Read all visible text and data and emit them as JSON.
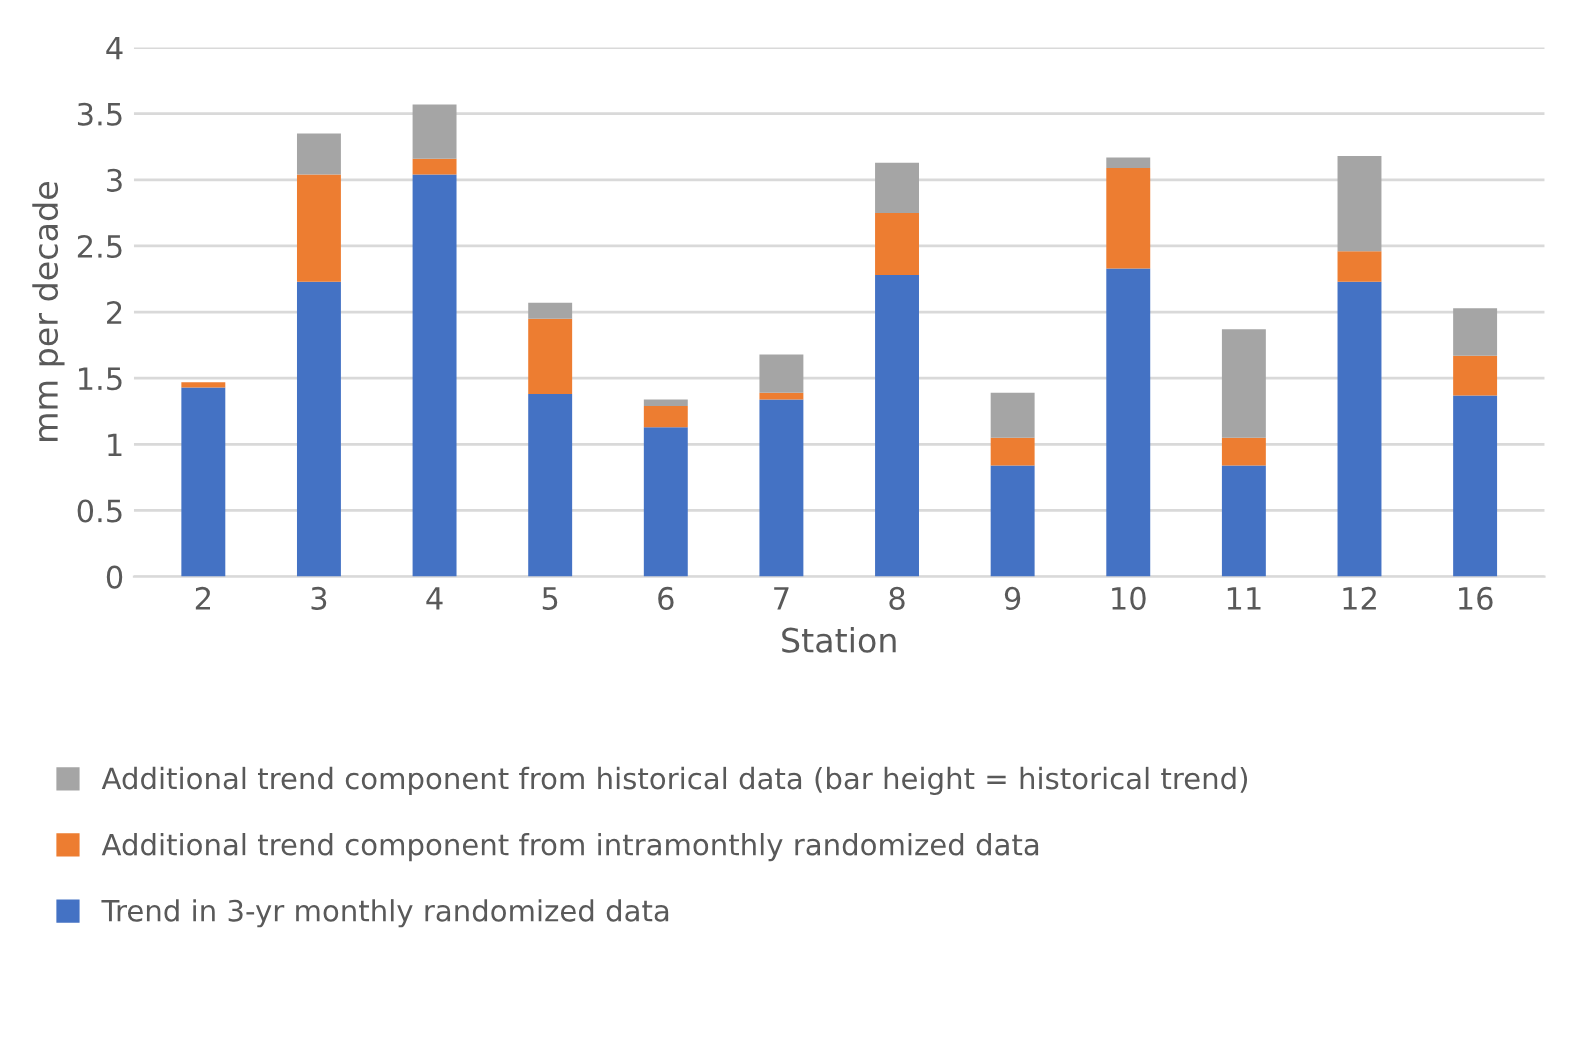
{
  "chart_data": {
    "type": "bar",
    "stacked": true,
    "xlabel": "Station",
    "ylabel": "mm per decade",
    "categories": [
      "2",
      "3",
      "4",
      "5",
      "6",
      "7",
      "8",
      "9",
      "10",
      "11",
      "12",
      "16"
    ],
    "series": [
      {
        "name": "Trend in 3-yr monthly randomized data",
        "color": "#4472c4",
        "values": [
          1.43,
          2.23,
          3.04,
          1.38,
          1.13,
          1.34,
          2.28,
          0.84,
          2.33,
          0.84,
          2.23,
          1.37
        ]
      },
      {
        "name": "Additional trend component from intramonthly randomized data",
        "color": "#ed7d31",
        "values": [
          0.04,
          0.81,
          0.12,
          0.57,
          0.16,
          0.05,
          0.47,
          0.21,
          0.76,
          0.21,
          0.23,
          0.3
        ]
      },
      {
        "name": "Additional trend component from historical data (bar height = historical trend)",
        "color": "#a5a5a5",
        "values": [
          null,
          0.31,
          0.41,
          0.12,
          0.05,
          0.29,
          0.38,
          0.34,
          0.08,
          0.82,
          0.72,
          0.36
        ]
      }
    ],
    "ylim": [
      0,
      4
    ],
    "yticks": [
      0,
      0.5,
      1,
      1.5,
      2,
      2.5,
      3,
      3.5,
      4
    ],
    "grid": "y",
    "legend": "bottom"
  }
}
